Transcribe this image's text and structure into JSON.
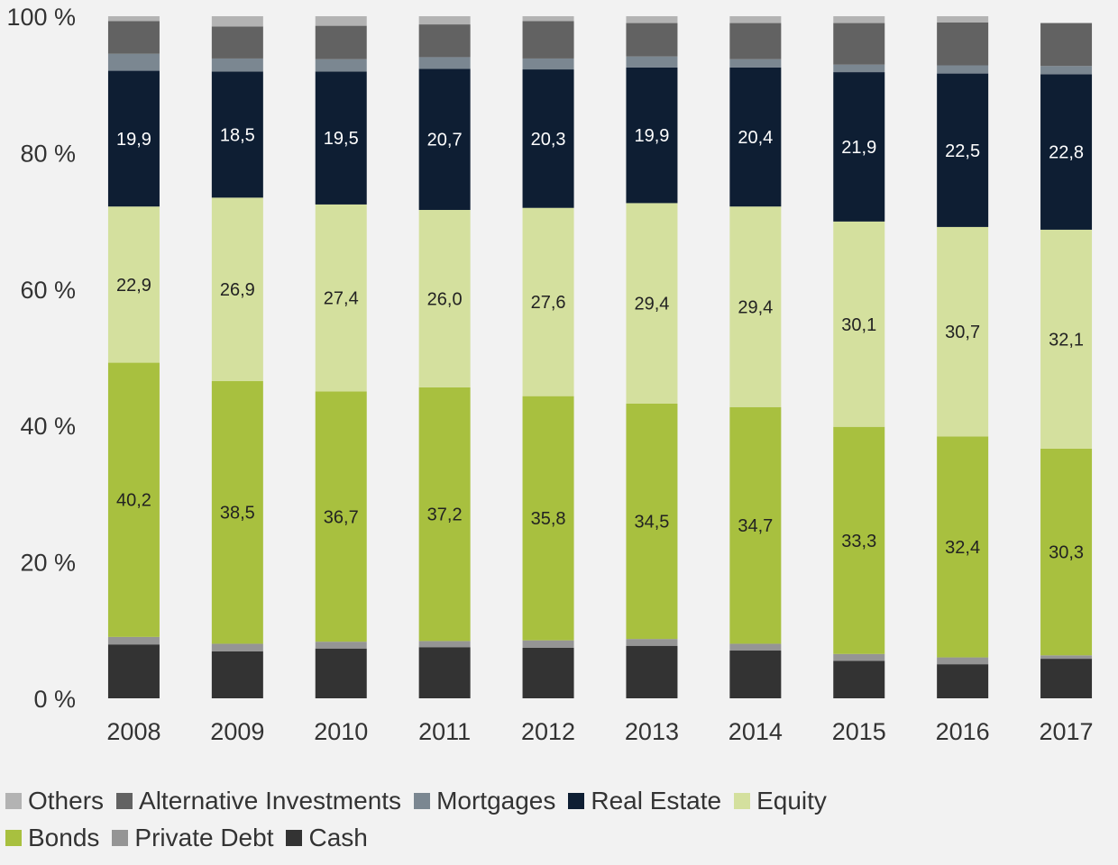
{
  "colors": {
    "background": "#f2f2f2",
    "axis_text": "#333333"
  },
  "chart_data": {
    "type": "bar",
    "stacked": true,
    "title": "",
    "xlabel": "",
    "ylabel": "",
    "ylim": [
      0,
      100
    ],
    "yticks": [
      "0 %",
      "20 %",
      "40 %",
      "60 %",
      "80 %",
      "100 %"
    ],
    "ytick_values": [
      0,
      20,
      40,
      60,
      80,
      100
    ],
    "grid": false,
    "legend_position": "bottom",
    "categories": [
      "2008",
      "2009",
      "2010",
      "2011",
      "2012",
      "2013",
      "2014",
      "2015",
      "2016",
      "2017"
    ],
    "series": [
      {
        "name": "Cash",
        "color": "#333333",
        "label_color": "#ffffff",
        "show_labels": false,
        "values": [
          7.9,
          6.9,
          7.3,
          7.5,
          7.4,
          7.7,
          7.0,
          5.5,
          5.0,
          5.8
        ]
      },
      {
        "name": "Private Debt",
        "color": "#959595",
        "label_color": "#ffffff",
        "show_labels": false,
        "values": [
          1.1,
          1.1,
          1.0,
          0.9,
          1.1,
          1.0,
          1.0,
          1.0,
          1.0,
          0.5
        ]
      },
      {
        "name": "Bonds",
        "color": "#a8c03f",
        "label_color": "#222222",
        "show_labels": true,
        "values": [
          40.2,
          38.5,
          36.7,
          37.2,
          35.8,
          34.5,
          34.7,
          33.3,
          32.4,
          30.3
        ]
      },
      {
        "name": "Equity",
        "color": "#d4e09e",
        "label_color": "#222222",
        "show_labels": true,
        "values": [
          22.9,
          26.9,
          27.4,
          26.0,
          27.6,
          29.4,
          29.4,
          30.1,
          30.7,
          32.1
        ]
      },
      {
        "name": "Real Estate",
        "color": "#0e1e33",
        "label_color": "#ffffff",
        "show_labels": true,
        "values": [
          19.9,
          18.5,
          19.5,
          20.7,
          20.3,
          19.9,
          20.4,
          21.9,
          22.5,
          22.8
        ]
      },
      {
        "name": "Mortgages",
        "color": "#7b8791",
        "label_color": "#ffffff",
        "show_labels": false,
        "values": [
          2.5,
          1.9,
          1.8,
          1.7,
          1.6,
          1.6,
          1.2,
          1.1,
          1.2,
          1.2
        ]
      },
      {
        "name": "Alternative Investments",
        "color": "#626262",
        "label_color": "#ffffff",
        "show_labels": false,
        "values": [
          4.8,
          4.7,
          4.9,
          4.8,
          5.5,
          4.9,
          5.3,
          6.1,
          6.3,
          6.3
        ]
      },
      {
        "name": "Others",
        "color": "#b3b3b3",
        "label_color": "#ffffff",
        "show_labels": false,
        "values": [
          0.7,
          1.5,
          1.4,
          1.2,
          0.7,
          1.0,
          1.0,
          1.0,
          0.9,
          0.0
        ]
      }
    ]
  },
  "legend": {
    "rows": [
      [
        "Others",
        "Alternative Investments",
        "Mortgages",
        "Real Estate",
        "Equity"
      ],
      [
        "Bonds",
        "Private Debt",
        "Cash"
      ]
    ]
  }
}
